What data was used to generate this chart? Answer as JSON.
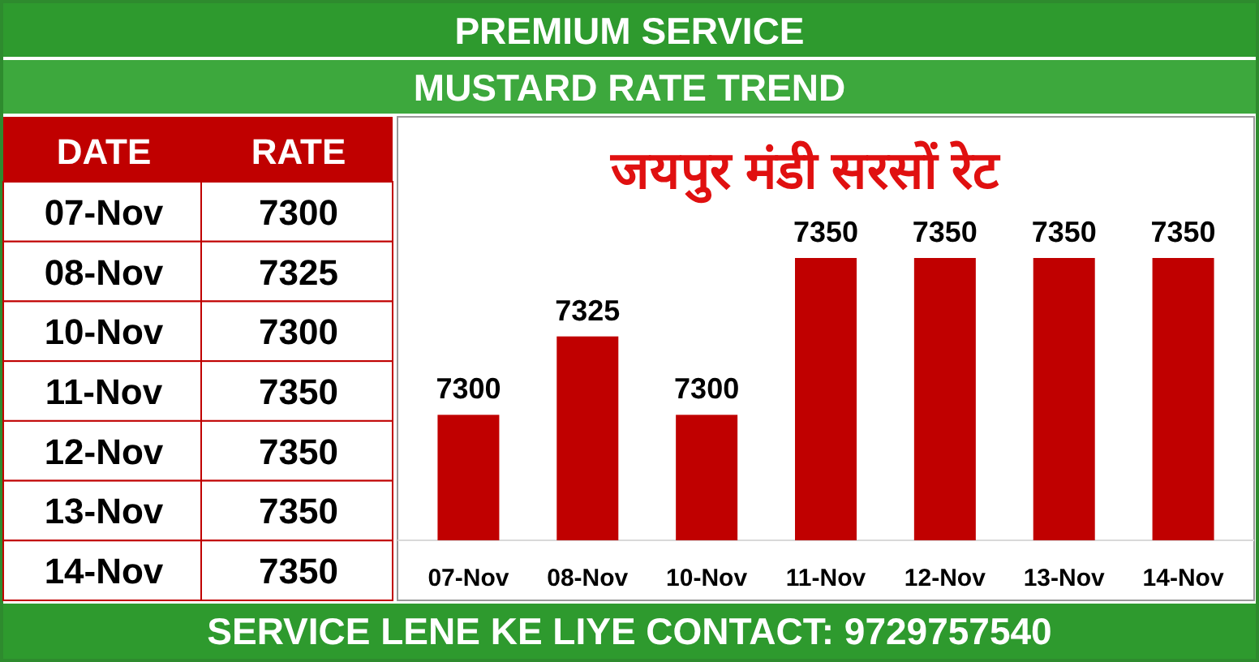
{
  "chart_data": [
    {
      "type": "bar",
      "title": "MUSTARD RATE TREND",
      "subtitle": "जयपुर मंडी सरसों रेट",
      "categories": [
        "07-Nov",
        "08-Nov",
        "10-Nov",
        "11-Nov",
        "12-Nov",
        "13-Nov",
        "14-Nov"
      ],
      "values": [
        7300,
        7325,
        7300,
        7350,
        7350,
        7350,
        7350
      ],
      "color": "#c00000",
      "ylim": [
        7260,
        7395
      ],
      "data_labels": true,
      "tick_labels": "x",
      "annotations": [
        "PREMIUM SERVICE",
        "SERVICE LENE KE LIYE CONTACT: 9729757540"
      ]
    },
    {
      "type": "other",
      "categories": [
        "07-Nov",
        "08-Nov",
        "10-Nov",
        "11-Nov",
        "12-Nov",
        "13-Nov",
        "14-Nov"
      ],
      "values": [
        7300,
        7325,
        7300,
        7350,
        7350,
        7350,
        7350
      ],
      "data_labels": true,
      "annotations": [
        "DATE",
        "RATE"
      ]
    }
  ]
}
